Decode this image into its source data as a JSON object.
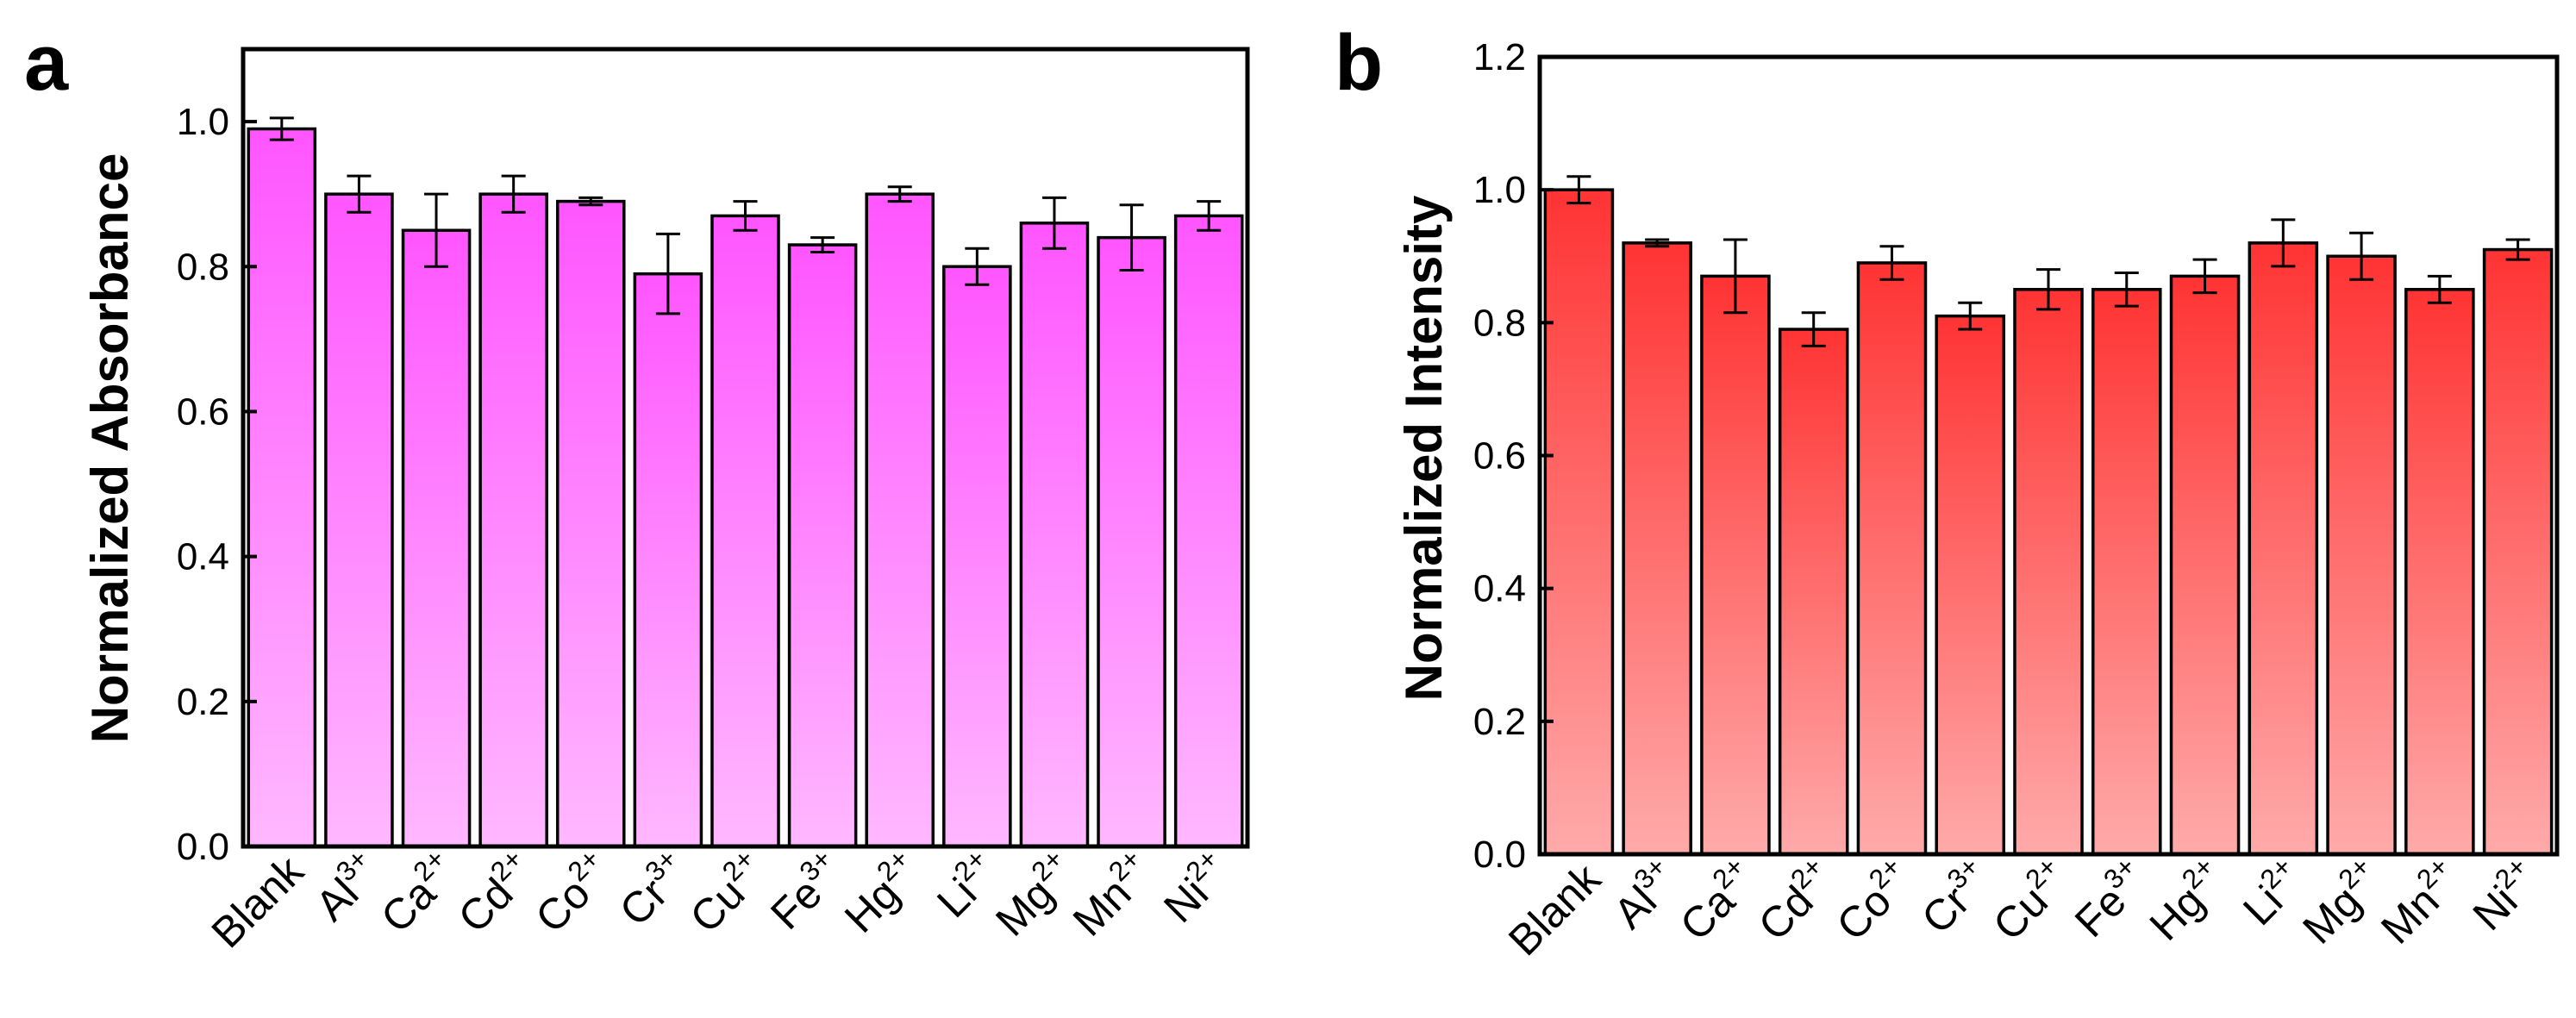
{
  "chart_data": [
    {
      "type": "bar",
      "panel_label": "a",
      "ylabel": "Normalized Absorbance",
      "ylim": [
        0,
        1.1
      ],
      "yticks": [
        "0.0",
        "0.2",
        "0.4",
        "0.6",
        "0.8",
        "1.0"
      ],
      "categories": [
        {
          "base": "Blank",
          "charge": ""
        },
        {
          "base": "Al",
          "charge": "3+"
        },
        {
          "base": "Ca",
          "charge": "2+"
        },
        {
          "base": "Cd",
          "charge": "2+"
        },
        {
          "base": "Co",
          "charge": "2+"
        },
        {
          "base": "Cr",
          "charge": "3+"
        },
        {
          "base": "Cu",
          "charge": "2+"
        },
        {
          "base": "Fe",
          "charge": "3+"
        },
        {
          "base": "Hg",
          "charge": "2+"
        },
        {
          "base": "Li",
          "charge": "2+"
        },
        {
          "base": "Mg",
          "charge": "2+"
        },
        {
          "base": "Mn",
          "charge": "2+"
        },
        {
          "base": "Ni",
          "charge": "2+"
        }
      ],
      "values": [
        0.99,
        0.9,
        0.85,
        0.9,
        0.89,
        0.79,
        0.87,
        0.83,
        0.9,
        0.8,
        0.86,
        0.84,
        0.87
      ],
      "errors": [
        0.015,
        0.025,
        0.05,
        0.025,
        0.005,
        0.055,
        0.02,
        0.01,
        0.01,
        0.025,
        0.035,
        0.045,
        0.02
      ],
      "bar_color_top": "#ff55ff",
      "bar_color_bottom": "#ffb8ff",
      "grid": false
    },
    {
      "type": "bar",
      "panel_label": "b",
      "ylabel": "Normalized Intensity",
      "ylim": [
        0,
        1.2
      ],
      "yticks": [
        "0.0",
        "0.2",
        "0.4",
        "0.6",
        "0.8",
        "1.0",
        "1.2"
      ],
      "categories": [
        {
          "base": "Blank",
          "charge": ""
        },
        {
          "base": "Al",
          "charge": "3+"
        },
        {
          "base": "Ca",
          "charge": "2+"
        },
        {
          "base": "Cd",
          "charge": "2+"
        },
        {
          "base": "Co",
          "charge": "2+"
        },
        {
          "base": "Cr",
          "charge": "3+"
        },
        {
          "base": "Cu",
          "charge": "2+"
        },
        {
          "base": "Fe",
          "charge": "3+"
        },
        {
          "base": "Hg",
          "charge": "2+"
        },
        {
          "base": "Li",
          "charge": "2+"
        },
        {
          "base": "Mg",
          "charge": "2+"
        },
        {
          "base": "Mn",
          "charge": "2+"
        },
        {
          "base": "Ni",
          "charge": "2+"
        }
      ],
      "values": [
        1.0,
        0.92,
        0.87,
        0.79,
        0.89,
        0.81,
        0.85,
        0.85,
        0.87,
        0.92,
        0.9,
        0.85,
        0.91
      ],
      "errors": [
        0.02,
        0.005,
        0.055,
        0.025,
        0.025,
        0.02,
        0.03,
        0.025,
        0.025,
        0.035,
        0.035,
        0.02,
        0.015
      ],
      "bar_color_top": "#ff3333",
      "bar_color_bottom": "#ffaaaa",
      "grid": false
    }
  ]
}
